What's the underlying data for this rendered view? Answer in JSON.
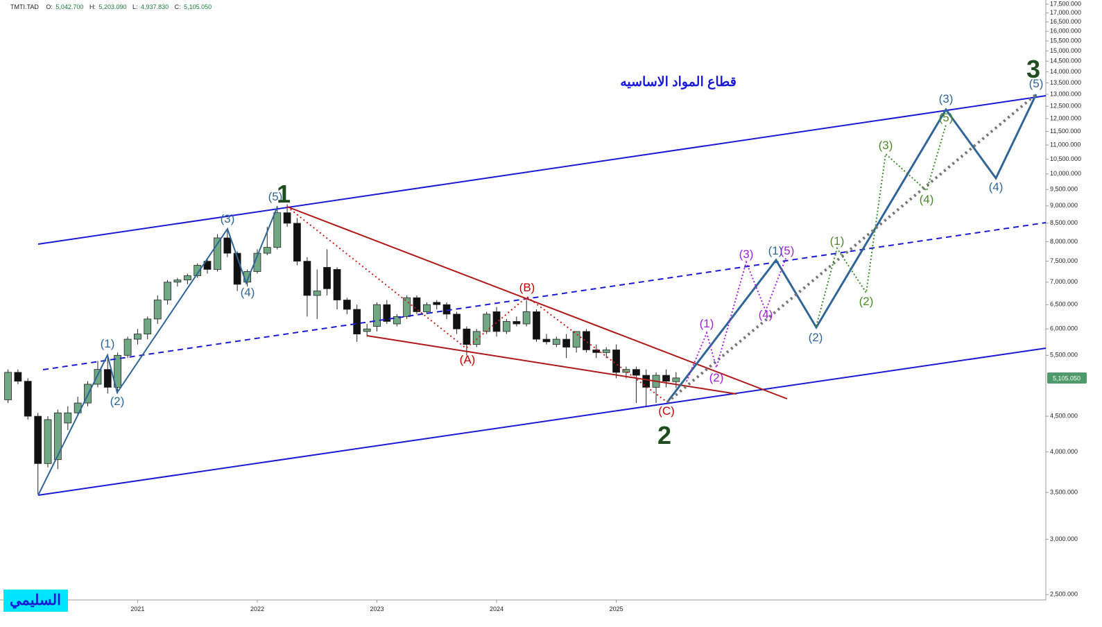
{
  "chart_data": {
    "type": "candlestick",
    "title": "قطاع المواد الاساسيه",
    "header": {
      "symbol": "TMTI.TAD",
      "open_label": "O:",
      "open": "5,042.700",
      "high_label": "H:",
      "high": "5,203.090",
      "low_label": "L:",
      "low": "4,937.830",
      "close_label": "C:",
      "close": "5,105.050"
    },
    "last_price_label": "5,105.050",
    "author": "السليمي",
    "log_scale": true,
    "up_color": "#6fa882",
    "down_color": "#111111",
    "x": [
      2019.917,
      2020.0,
      2020.083,
      2020.167,
      2020.25,
      2020.333,
      2020.417,
      2020.5,
      2020.583,
      2020.667,
      2020.75,
      2020.833,
      2020.917,
      2021.0,
      2021.083,
      2021.167,
      2021.25,
      2021.333,
      2021.417,
      2021.5,
      2021.583,
      2021.667,
      2021.75,
      2021.833,
      2021.917,
      2022.0,
      2022.083,
      2022.167,
      2022.25,
      2022.333,
      2022.417,
      2022.5,
      2022.583,
      2022.667,
      2022.75,
      2022.833,
      2022.917,
      2023.0,
      2023.083,
      2023.167,
      2023.25,
      2023.333,
      2023.417,
      2023.5,
      2023.583,
      2023.667,
      2023.75,
      2023.833,
      2023.917,
      2024.0,
      2024.083,
      2024.167,
      2024.25,
      2024.333,
      2024.417,
      2024.5,
      2024.583,
      2024.667,
      2024.75,
      2024.833,
      2024.917,
      2025.0,
      2025.083,
      2025.167,
      2025.25,
      2025.333,
      2025.417,
      2025.5
    ],
    "open": [
      4750,
      5200,
      5050,
      4500,
      3850,
      3900,
      4400,
      4550,
      4700,
      5000,
      5250,
      4950,
      5500,
      5800,
      5900,
      6200,
      6600,
      7000,
      7050,
      7150,
      7500,
      7300,
      8100,
      7700,
      7000,
      7250,
      7700,
      7850,
      8800,
      8500,
      7500,
      6700,
      7350,
      7300,
      6600,
      6400,
      5950,
      6050,
      6500,
      6100,
      6250,
      6650,
      6350,
      6550,
      6500,
      6300,
      6000,
      5700,
      5950,
      6350,
      5950,
      6150,
      6100,
      6350,
      5800,
      5700,
      5800,
      5650,
      5950,
      5600,
      5550,
      5600,
      5200,
      5250,
      5150,
      4950,
      5150,
      5042.7
    ],
    "high": [
      5250,
      5250,
      5100,
      4550,
      4500,
      4600,
      4650,
      4800,
      5050,
      5400,
      5500,
      5550,
      5850,
      6000,
      6250,
      6700,
      7050,
      7100,
      7200,
      7450,
      7550,
      8200,
      8300,
      7750,
      7300,
      7800,
      8400,
      9000,
      9050,
      8650,
      7600,
      7300,
      7800,
      7350,
      6650,
      6500,
      6100,
      6550,
      6600,
      6300,
      6700,
      6700,
      6550,
      6600,
      6550,
      6350,
      6050,
      6000,
      6350,
      6450,
      6200,
      6250,
      6600,
      6400,
      5900,
      5850,
      5900,
      5950,
      6000,
      5700,
      5650,
      5700,
      5300,
      5300,
      5250,
      5200,
      5250,
      5203.09
    ],
    "low": [
      4700,
      5000,
      4450,
      3480,
      3800,
      3780,
      4300,
      4500,
      4650,
      4950,
      4850,
      4850,
      5450,
      5700,
      5800,
      6100,
      6500,
      6900,
      6950,
      7100,
      7200,
      7250,
      7600,
      6800,
      6900,
      7200,
      7650,
      7800,
      8400,
      7400,
      6250,
      6200,
      6700,
      6400,
      6300,
      5750,
      5850,
      5950,
      6100,
      6050,
      6200,
      6300,
      6300,
      6400,
      6200,
      5900,
      5500,
      5650,
      5900,
      5850,
      5900,
      6050,
      6050,
      5750,
      5700,
      5650,
      5450,
      5550,
      5550,
      5450,
      5450,
      5100,
      5100,
      4700,
      4650,
      4700,
      4950,
      4937.83
    ],
    "close": [
      5200,
      5050,
      4500,
      3850,
      4450,
      4550,
      4550,
      4700,
      5000,
      5250,
      4950,
      5500,
      5800,
      5900,
      6200,
      6600,
      7000,
      7050,
      7150,
      7400,
      7300,
      8100,
      7700,
      6950,
      7250,
      7700,
      7850,
      8800,
      8500,
      7500,
      6700,
      6800,
      6850,
      6600,
      6400,
      5900,
      6000,
      6500,
      6150,
      6250,
      6650,
      6350,
      6500,
      6500,
      6300,
      6000,
      5700,
      5950,
      6300,
      5950,
      6150,
      6100,
      6350,
      5800,
      5750,
      5800,
      5650,
      5950,
      5600,
      5550,
      5600,
      5200,
      5250,
      5150,
      4950,
      5150,
      5050,
      5105.05
    ],
    "xlim": [
      2019.85,
      2028.59
    ],
    "xticks": [
      2021,
      2022,
      2023,
      2024,
      2025
    ],
    "ylim": [
      2456,
      17740
    ],
    "yticks": [
      {
        "value": 2500,
        "label": "2,500.000"
      },
      {
        "value": 3000,
        "label": "3,000.000"
      },
      {
        "value": 3500,
        "label": "3,500.000"
      },
      {
        "value": 4000,
        "label": "4,000.000"
      },
      {
        "value": 4500,
        "label": "4,500.000"
      },
      {
        "value": 5500,
        "label": "5,500.000"
      },
      {
        "value": 6000,
        "label": "6,000.000"
      },
      {
        "value": 6500,
        "label": "6,500.000"
      },
      {
        "value": 7000,
        "label": "7,000.000"
      },
      {
        "value": 7500,
        "label": "7,500.000"
      },
      {
        "value": 8000,
        "label": "8,000.000"
      },
      {
        "value": 8500,
        "label": "8,500.000"
      },
      {
        "value": 9000,
        "label": "9,000.000"
      },
      {
        "value": 9500,
        "label": "9,500.000"
      },
      {
        "value": 10000,
        "label": "10,000.000"
      },
      {
        "value": 10500,
        "label": "10,500.000"
      },
      {
        "value": 11000,
        "label": "11,000.000"
      },
      {
        "value": 11500,
        "label": "11,500.000"
      },
      {
        "value": 12000,
        "label": "12,000.000"
      },
      {
        "value": 12500,
        "label": "12,500.000"
      },
      {
        "value": 13000,
        "label": "13,000.000"
      },
      {
        "value": 13500,
        "label": "13,500.000"
      },
      {
        "value": 14000,
        "label": "14,000.000"
      },
      {
        "value": 14500,
        "label": "14,500.000"
      },
      {
        "value": 15000,
        "label": "15,000.000"
      },
      {
        "value": 15500,
        "label": "15,500.000"
      },
      {
        "value": 16000,
        "label": "16,000.000"
      },
      {
        "value": 16500,
        "label": "16,500.000"
      },
      {
        "value": 17000,
        "label": "17,000.000"
      },
      {
        "value": 17500,
        "label": "17,500.000"
      }
    ],
    "wave_labels": [
      "(1)",
      "(2)",
      "(3)",
      "(4)",
      "(5)",
      "(1)",
      "(2)",
      "(3)",
      "(4)",
      "(5)",
      "(A)",
      "(B)",
      "(C)",
      "(1)",
      "(2)",
      "(3)",
      "(4)",
      "(5)",
      "(1)",
      "(2)",
      "(3)",
      "(4)",
      "(5)",
      "1",
      "2",
      "3"
    ]
  }
}
